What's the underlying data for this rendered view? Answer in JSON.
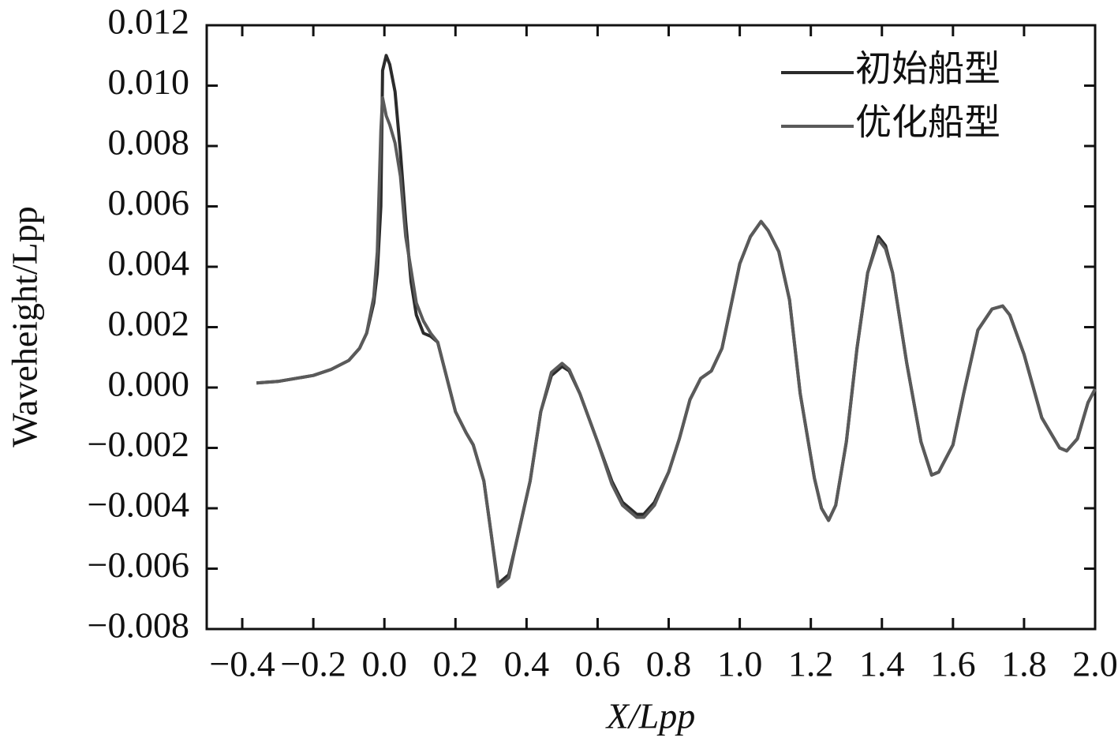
{
  "chart_data": {
    "type": "line",
    "x_label": "X/Lpp",
    "y_label": "Waveheight/Lpp",
    "x": [
      -0.36,
      -0.3,
      -0.2,
      -0.15,
      -0.1,
      -0.07,
      -0.05,
      -0.03,
      -0.02,
      -0.01,
      -0.005,
      0.005,
      0.015,
      0.03,
      0.045,
      0.06,
      0.075,
      0.09,
      0.11,
      0.13,
      0.15,
      0.2,
      0.23,
      0.25,
      0.28,
      0.3,
      0.32,
      0.35,
      0.37,
      0.41,
      0.44,
      0.47,
      0.5,
      0.52,
      0.55,
      0.6,
      0.64,
      0.67,
      0.71,
      0.73,
      0.76,
      0.8,
      0.83,
      0.86,
      0.89,
      0.92,
      0.95,
      1.0,
      1.03,
      1.06,
      1.08,
      1.11,
      1.14,
      1.17,
      1.21,
      1.23,
      1.25,
      1.27,
      1.3,
      1.33,
      1.36,
      1.39,
      1.41,
      1.43,
      1.47,
      1.51,
      1.54,
      1.56,
      1.6,
      1.63,
      1.67,
      1.71,
      1.74,
      1.76,
      1.8,
      1.85,
      1.9,
      1.92,
      1.95,
      1.98,
      2.0
    ],
    "series": [
      {
        "name": "初始船型",
        "color": "#2b2b2b",
        "values": [
          0.00015,
          0.0002,
          0.0004,
          0.0006,
          0.0009,
          0.0013,
          0.0018,
          0.0028,
          0.0038,
          0.006,
          0.0105,
          0.011,
          0.0107,
          0.0098,
          0.0078,
          0.0055,
          0.0035,
          0.0024,
          0.0018,
          0.0017,
          0.0015,
          -0.0008,
          -0.0015,
          -0.0019,
          -0.0031,
          -0.0048,
          -0.0065,
          -0.0062,
          -0.0052,
          -0.0031,
          -0.0008,
          0.0004,
          0.0007,
          0.00055,
          -0.0002,
          -0.0018,
          -0.0031,
          -0.0038,
          -0.0042,
          -0.0042,
          -0.0038,
          -0.0028,
          -0.0017,
          -0.0004,
          0.0003,
          0.00055,
          0.0013,
          0.0041,
          0.005,
          0.0055,
          0.0052,
          0.0045,
          0.0029,
          -0.0002,
          -0.003,
          -0.004,
          -0.0044,
          -0.0039,
          -0.0018,
          0.0013,
          0.0038,
          0.005,
          0.0047,
          0.0038,
          0.0008,
          -0.0018,
          -0.0029,
          -0.0028,
          -0.0019,
          -0.0002,
          0.0019,
          0.0026,
          0.0027,
          0.0024,
          0.0011,
          -0.001,
          -0.002,
          -0.0021,
          -0.0017,
          -0.0005,
          -5e-05
        ]
      },
      {
        "name": "优化船型",
        "color": "#5a5a5a",
        "values": [
          0.00015,
          0.0002,
          0.0004,
          0.0006,
          0.0009,
          0.0013,
          0.0018,
          0.003,
          0.0045,
          0.0085,
          0.0096,
          0.009,
          0.0087,
          0.0081,
          0.007,
          0.005,
          0.0039,
          0.0028,
          0.0022,
          0.0018,
          0.0015,
          -0.0008,
          -0.0015,
          -0.0019,
          -0.0031,
          -0.0048,
          -0.0066,
          -0.0063,
          -0.0052,
          -0.0031,
          -0.0008,
          0.0005,
          0.0008,
          0.0006,
          -0.0002,
          -0.0018,
          -0.0032,
          -0.0039,
          -0.0043,
          -0.0043,
          -0.0039,
          -0.0028,
          -0.0017,
          -0.0004,
          0.0003,
          0.00055,
          0.0013,
          0.0041,
          0.005,
          0.0055,
          0.0052,
          0.0045,
          0.0029,
          -0.0002,
          -0.003,
          -0.004,
          -0.0044,
          -0.0039,
          -0.0018,
          0.0013,
          0.0038,
          0.0049,
          0.0046,
          0.0038,
          0.0008,
          -0.0018,
          -0.0029,
          -0.0028,
          -0.0019,
          -0.0002,
          0.0019,
          0.0026,
          0.0027,
          0.0024,
          0.0011,
          -0.001,
          -0.002,
          -0.0021,
          -0.0017,
          -0.0005,
          -5e-05
        ]
      }
    ],
    "xlim": [
      -0.5,
      2.0
    ],
    "xticks": [
      {
        "value": -0.4,
        "label": "−0.4"
      },
      {
        "value": -0.2,
        "label": "−0.2"
      },
      {
        "value": 0,
        "label": "0.0"
      },
      0.2,
      0.4,
      0.6,
      0.8,
      {
        "value": 1,
        "label": "1.0"
      },
      1.2,
      1.4,
      1.6,
      1.8,
      {
        "value": 2,
        "label": "2.0"
      }
    ],
    "ylim": [
      -0.008,
      0.012
    ],
    "yticks": [
      {
        "value": -0.008,
        "label": "−0.008"
      },
      {
        "value": -0.006,
        "label": "−0.006"
      },
      {
        "value": -0.004,
        "label": "−0.004"
      },
      {
        "value": -0.002,
        "label": "−0.002"
      },
      {
        "value": 0,
        "label": "0.000"
      },
      0.002,
      0.004,
      0.006,
      0.008,
      {
        "value": 0.01,
        "label": "0.010"
      },
      0.012
    ],
    "legend": "upper right"
  }
}
